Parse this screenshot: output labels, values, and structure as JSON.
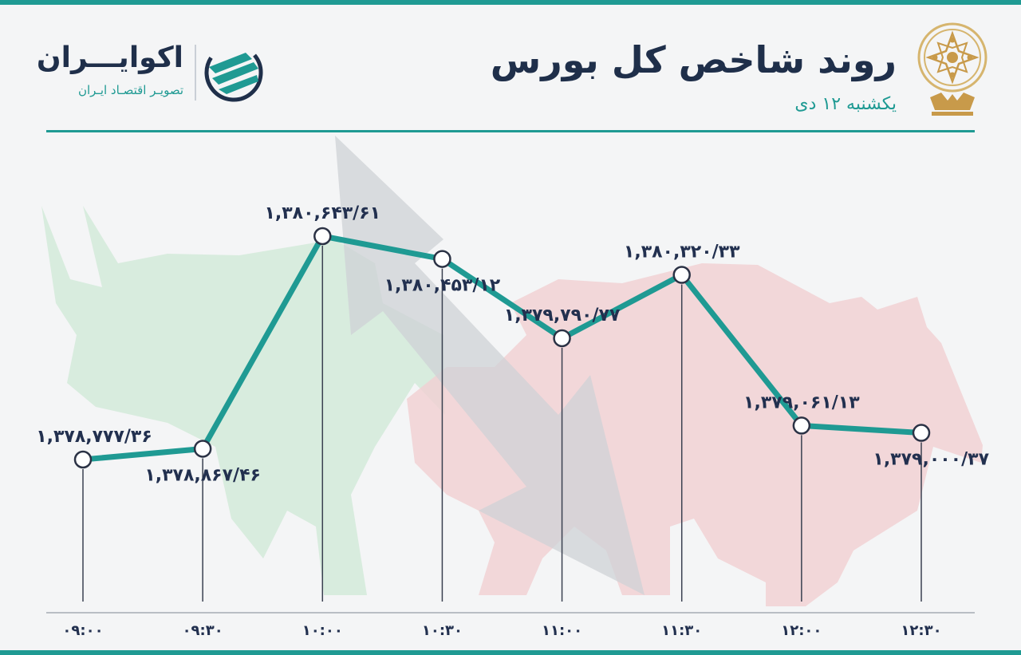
{
  "header": {
    "title": "روند شاخص کل بورس",
    "subtitle": "یکشنبه ۱۲ دی"
  },
  "brand": {
    "name": "اکوایـــران",
    "tagline": "تصویـر اقتصـاد ایـران",
    "logo_icon": "ecoiran-logo-icon",
    "emblem_icon": "tehran-stock-exchange-emblem-icon"
  },
  "colors": {
    "accent": "#1f9a93",
    "text_dark": "#1f2f4a",
    "bull": "#cfe8d6",
    "bear": "#f1cfd2",
    "arrow": "#d4d6da"
  },
  "chart_data": {
    "type": "line",
    "x": [
      "۰۹:۰۰",
      "۰۹:۳۰",
      "۱۰:۰۰",
      "۱۰:۳۰",
      "۱۱:۰۰",
      "۱۱:۳۰",
      "۱۲:۰۰",
      "۱۲:۳۰"
    ],
    "values": [
      1378777.36,
      1378867.46,
      1380643.61,
      1380453.12,
      1379790.77,
      1380320.33,
      1379061.13,
      1379000.37
    ],
    "value_labels": [
      "۱,۳۷۸,۷۷۷/۳۶",
      "۱,۳۷۸,۸۶۷/۴۶",
      "۱,۳۸۰,۶۴۳/۶۱",
      "۱,۳۸۰,۴۵۳/۱۲",
      "۱,۳۷۹,۷۹۰/۷۷",
      "۱,۳۸۰,۳۲۰/۳۳",
      "۱,۳۷۹,۰۶۱/۱۳",
      "۱,۳۷۹,۰۰۰/۳۷"
    ],
    "title": "روند شاخص کل بورس",
    "grid": false,
    "series_color": "#1f9a93"
  }
}
